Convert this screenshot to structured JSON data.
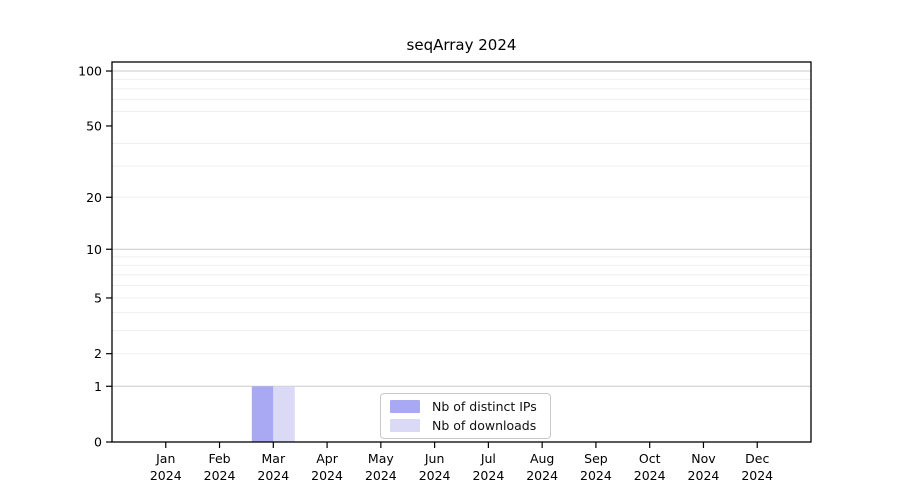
{
  "figure": {
    "title": "seqArray 2024",
    "background": "#ffffff"
  },
  "chart_data": {
    "type": "bar",
    "title": "seqArray 2024",
    "categories": [
      "Jan",
      "Feb",
      "Mar",
      "Apr",
      "May",
      "Jun",
      "Jul",
      "Aug",
      "Sep",
      "Oct",
      "Nov",
      "Dec"
    ],
    "year": "2024",
    "series": [
      {
        "name": "Nb of distinct IPs",
        "color": "#a9a9f3",
        "values": [
          0,
          0,
          1,
          0,
          0,
          0,
          0,
          0,
          0,
          0,
          0,
          0
        ]
      },
      {
        "name": "Nb of downloads",
        "color": "#dadaf7",
        "values": [
          0,
          0,
          1,
          0,
          0,
          0,
          0,
          0,
          0,
          0,
          0,
          0
        ]
      }
    ],
    "yscale": "log1p",
    "yticks": [
      0,
      1,
      2,
      5,
      10,
      20,
      50,
      100
    ],
    "major_gridlines": [
      1,
      10,
      100
    ],
    "minor_gridlines": [
      2,
      3,
      4,
      5,
      6,
      7,
      8,
      9,
      20,
      30,
      40,
      60,
      70,
      80,
      90
    ],
    "ylim_top": 112,
    "xlabel": "",
    "ylabel": "",
    "grid": true,
    "legend_position": "inside-bottom-center"
  },
  "legend": {
    "items": [
      {
        "label": "Nb of distinct IPs",
        "color": "#a9a9f3"
      },
      {
        "label": "Nb of downloads",
        "color": "#dadaf7"
      }
    ]
  },
  "colors": {
    "axis": "#000000",
    "major_grid": "#c9c9c9",
    "minor_grid": "#efefef",
    "text": "#000000"
  }
}
